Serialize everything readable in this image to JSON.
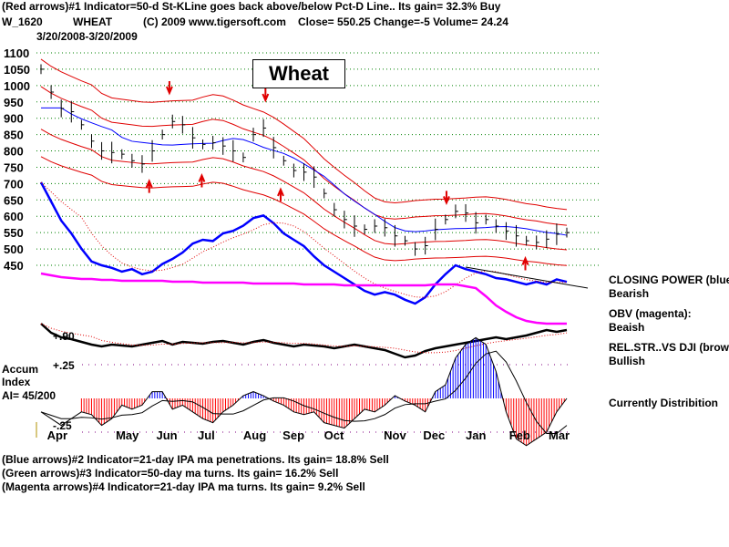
{
  "header": {
    "line1": "(Red arrows)#1 Indicator=50-d St-KLine goes back above/below Pct-D Line.. Its gain= 32.3% Buy",
    "symbol": "W_1620",
    "name": "WHEAT",
    "copyright": "(C) 2009 www.tigersoft.com",
    "quote": "Close=  550.25  Change=-5 Volume= 24.24",
    "range": "3/20/2008-3/20/2009"
  },
  "title": "Wheat",
  "right_labels": {
    "cp": "CLOSING POWER (blue)",
    "cp_state": "Bearish",
    "obv": "OBV (magenta):",
    "obv_state": "Beaish",
    "rs": "REL.STR..VS DJI (brown)",
    "rs_state": "Bullish",
    "ai_state": "Currently Distribition"
  },
  "accum": {
    "l1": "Accum",
    "l2": "Index",
    "l3": "AI= 45/200",
    "plus": "+.25",
    "minus": "-.25",
    "rs_tick": "+.90"
  },
  "footer": [
    "(Blue arrows)#2 Indicator=21-day IPA ma penetrations. Its gain= 18.8% Sell",
    "(Green arrows)#3 Indicator=50-day ma turns. Its gain= 16.2% Sell",
    "(Magenta arrows)#4 Indicator=21-day IPA ma turns. Its gain= 9.2% Sell"
  ],
  "chart_data": {
    "type": "line",
    "title": "Wheat",
    "x_period": "weekly 3/20/2008-3/20/2009",
    "months": [
      "Apr",
      "May",
      "Jun",
      "Jul",
      "Aug",
      "Sep",
      "Oct",
      "Nov",
      "Dec",
      "Jan",
      "Feb",
      "Mar"
    ],
    "month_week": [
      1.5,
      8.3,
      12.3,
      16.4,
      20.9,
      24.8,
      28.9,
      34.8,
      38.7,
      42.9,
      47.2,
      51.1
    ],
    "yticks": [
      1100,
      1050,
      1000,
      950,
      900,
      850,
      800,
      750,
      700,
      650,
      600,
      550,
      500,
      450
    ],
    "ylim": [
      450,
      1100
    ],
    "price_close": [
      1050,
      980,
      930,
      920,
      880,
      830,
      800,
      795,
      790,
      770,
      760,
      800,
      850,
      890,
      880,
      840,
      820,
      825,
      815,
      800,
      780,
      850,
      870,
      810,
      770,
      740,
      735,
      720,
      670,
      620,
      590,
      570,
      560,
      570,
      565,
      540,
      525,
      500,
      510,
      560,
      590,
      615,
      610,
      580,
      590,
      570,
      555,
      540,
      525,
      520,
      530,
      545,
      550
    ],
    "closing_power": [
      100,
      85,
      70,
      60,
      48,
      38,
      35,
      33,
      30,
      32,
      28,
      30,
      36,
      40,
      45,
      52,
      55,
      54,
      60,
      62,
      66,
      72,
      74,
      68,
      60,
      55,
      50,
      42,
      35,
      30,
      25,
      20,
      15,
      12,
      14,
      12,
      8,
      5,
      10,
      20,
      28,
      35,
      32,
      30,
      28,
      25,
      24,
      22,
      20,
      22,
      20,
      24,
      22
    ],
    "obv": [
      20,
      18,
      16,
      15,
      14,
      14,
      13,
      13,
      12,
      12,
      12,
      12,
      12,
      11,
      11,
      11,
      10,
      10,
      10,
      10,
      10,
      9,
      9,
      9,
      9,
      9,
      8,
      8,
      8,
      8,
      7,
      7,
      7,
      7,
      7,
      7,
      7,
      7,
      7,
      8,
      8,
      8,
      6,
      4,
      -5,
      -15,
      -22,
      -28,
      -32,
      -34,
      -35,
      -35,
      -35
    ],
    "rel_strength": [
      45,
      35,
      30,
      28,
      25,
      22,
      20,
      22,
      21,
      20,
      22,
      24,
      26,
      22,
      25,
      24,
      23,
      25,
      26,
      24,
      22,
      25,
      27,
      24,
      22,
      20,
      22,
      21,
      20,
      18,
      20,
      22,
      20,
      18,
      16,
      12,
      8,
      10,
      15,
      18,
      20,
      22,
      24,
      26,
      28,
      30,
      28,
      30,
      32,
      35,
      38,
      36,
      38
    ],
    "accum_index": [
      -0.1,
      -0.15,
      -0.2,
      -0.15,
      -0.1,
      -0.12,
      -0.2,
      -0.15,
      -0.05,
      -0.08,
      -0.05,
      0.05,
      0.05,
      -0.08,
      -0.05,
      -0.1,
      -0.15,
      -0.18,
      -0.1,
      -0.05,
      0.02,
      0.05,
      0.02,
      -0.02,
      -0.05,
      -0.1,
      -0.12,
      -0.1,
      -0.18,
      -0.2,
      -0.22,
      -0.15,
      -0.08,
      -0.1,
      -0.05,
      0.02,
      -0.02,
      -0.05,
      -0.1,
      0.05,
      0.1,
      0.3,
      0.4,
      0.45,
      0.4,
      0.2,
      -0.1,
      -0.3,
      -0.35,
      -0.3,
      -0.25,
      -0.1,
      0.0
    ],
    "arrows": [
      {
        "week": 12.7,
        "dir": "down"
      },
      {
        "week": 22.2,
        "dir": "down"
      },
      {
        "week": 40.1,
        "dir": "down"
      },
      {
        "week": 10.7,
        "dir": "up"
      },
      {
        "week": 15.9,
        "dir": "up"
      },
      {
        "week": 23.7,
        "dir": "up"
      },
      {
        "week": 47.9,
        "dir": "up"
      }
    ],
    "colors": {
      "bands": "#e00000",
      "ma": "#0000ff",
      "cp": "#0000ff",
      "obv": "#ff00ff",
      "rs": "#000000",
      "grid": "#008000"
    }
  }
}
